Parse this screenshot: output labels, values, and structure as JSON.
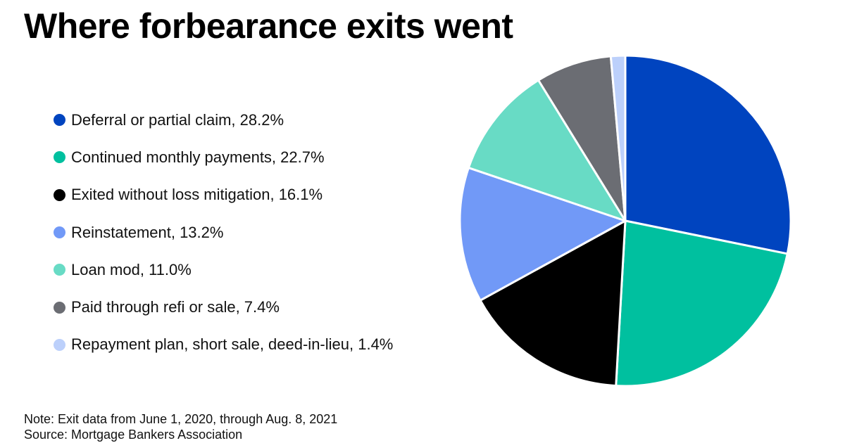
{
  "title": "Where forbearance exits went",
  "chart_data": {
    "type": "pie",
    "slices": [
      {
        "legend": "Deferral or partial claim, 28.2%",
        "value": 28.2,
        "color": "#0044bf"
      },
      {
        "legend": "Continued monthly payments, 22.7%",
        "value": 22.7,
        "color": "#00c09f"
      },
      {
        "legend": "Exited without loss mitigation, 16.1%",
        "value": 16.1,
        "color": "#000000"
      },
      {
        "legend": "Reinstatement, 13.2%",
        "value": 13.2,
        "color": "#7199f7"
      },
      {
        "legend": "Loan mod, 11.0%",
        "value": 11.0,
        "color": "#68dbc5"
      },
      {
        "legend": "Paid through refi or sale, 7.4%",
        "value": 7.4,
        "color": "#6b6d73"
      },
      {
        "legend": "Repayment plan, short sale, deed-in-lieu, 1.4%",
        "value": 1.4,
        "color": "#bcd0fb"
      }
    ],
    "legend_placement": "left"
  },
  "footnote": {
    "note": "Note: Exit data from June 1, 2020, through Aug. 8, 2021",
    "source": "Source: Mortgage Bankers Association"
  }
}
